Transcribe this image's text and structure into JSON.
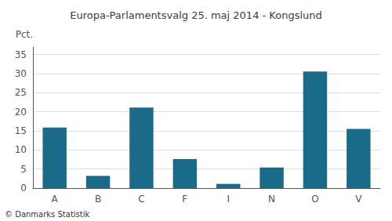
{
  "chart_data": {
    "type": "bar",
    "title": "Europa-Parlamentsvalg 25. maj 2014 - Kongslund",
    "categories": [
      "A",
      "B",
      "C",
      "F",
      "I",
      "N",
      "O",
      "V"
    ],
    "values": [
      15.9,
      3.2,
      21.1,
      7.6,
      1.1,
      5.4,
      30.6,
      15.5
    ],
    "color": "#1a6b8a",
    "ylabel": "Pct.",
    "footer": "© Danmarks Statistik",
    "ylim": [
      0,
      37
    ],
    "yticks": [
      0,
      5,
      10,
      15,
      20,
      25,
      30,
      35
    ],
    "grid": true
  }
}
